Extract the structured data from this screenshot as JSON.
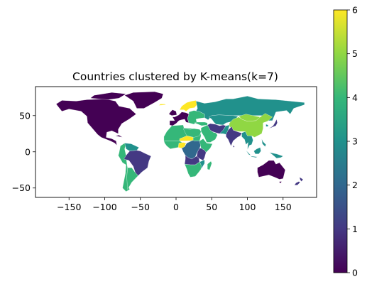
{
  "chart_data": {
    "type": "choropleth-map",
    "title": "Countries clustered by K-means(k=7)",
    "x_ticks": [
      -150,
      -100,
      -50,
      0,
      50,
      100,
      150
    ],
    "y_ticks": [
      50,
      0,
      -50
    ],
    "xlim": [
      -197,
      197
    ],
    "ylim": [
      -63,
      90
    ],
    "colorbar": {
      "min": 0,
      "max": 6,
      "ticks": [
        0,
        1,
        2,
        3,
        4,
        5,
        6
      ],
      "colormap": "viridis",
      "cluster_colors": [
        "#440154",
        "#443983",
        "#31688e",
        "#21918c",
        "#35b779",
        "#90d743",
        "#fde725"
      ]
    },
    "clusters_by_region": [
      {
        "region": "North America",
        "cluster": 0
      },
      {
        "region": "Mexico & Central America",
        "cluster": 0
      },
      {
        "region": "Greenland",
        "cluster": 0
      },
      {
        "region": "Russia",
        "cluster": 3
      },
      {
        "region": "China",
        "cluster": 5
      },
      {
        "region": "Central Asia",
        "cluster": 3
      },
      {
        "region": "Mongolia",
        "cluster": 5
      },
      {
        "region": "Scandinavia",
        "cluster": 6
      },
      {
        "region": "Western Europe",
        "cluster": 0
      },
      {
        "region": "Eastern Europe",
        "cluster": 4
      },
      {
        "region": "Middle East",
        "cluster": 4
      },
      {
        "region": "Iran",
        "cluster": 1
      },
      {
        "region": "India",
        "cluster": 1
      },
      {
        "region": "Southeast Asia",
        "cluster": 3
      },
      {
        "region": "North Africa",
        "cluster": 4
      },
      {
        "region": "West Africa",
        "cluster": 4
      },
      {
        "region": "Central Africa",
        "cluster": 2
      },
      {
        "region": "Southern Africa",
        "cluster": 1
      },
      {
        "region": "Brazil",
        "cluster": 1
      },
      {
        "region": "Andean countries",
        "cluster": 4
      },
      {
        "region": "Southern Cone",
        "cluster": 4
      },
      {
        "region": "Australia",
        "cluster": 0
      },
      {
        "region": "New Zealand",
        "cluster": 1
      },
      {
        "region": "Japan",
        "cluster": 1
      },
      {
        "region": "Indonesia",
        "cluster": 3
      }
    ]
  }
}
